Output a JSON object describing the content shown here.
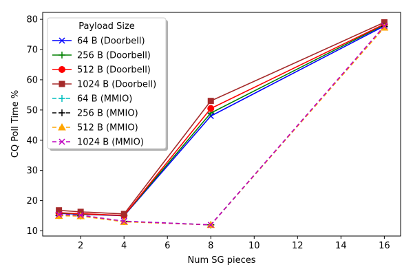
{
  "chart_data": {
    "type": "line",
    "title": "",
    "xlabel": "Num SG pieces",
    "ylabel": "CQ Poll Time %",
    "xlim": [
      0.25,
      16.75
    ],
    "ylim": [
      8.3,
      82.3
    ],
    "xticks": [
      2,
      4,
      6,
      8,
      10,
      12,
      14,
      16
    ],
    "yticks": [
      10,
      20,
      30,
      40,
      50,
      60,
      70,
      80
    ],
    "grid": false,
    "legend": {
      "title": "Payload Size",
      "placement": "top-left"
    },
    "x": [
      1,
      2,
      4,
      8,
      16
    ],
    "series": [
      {
        "name": "64 B (Doorbell)",
        "values": [
          15.8,
          15.5,
          15.0,
          48.0,
          77.8
        ],
        "color": "#0000ff",
        "dash": "solid",
        "marker": "x"
      },
      {
        "name": "256 B (Doorbell)",
        "values": [
          15.9,
          15.6,
          15.1,
          49.0,
          78.2
        ],
        "color": "#008000",
        "dash": "solid",
        "marker": "plus"
      },
      {
        "name": "512 B (Doorbell)",
        "values": [
          16.0,
          15.7,
          15.1,
          50.5,
          78.4
        ],
        "color": "#ff0000",
        "dash": "solid",
        "marker": "circle"
      },
      {
        "name": "1024 B (Doorbell)",
        "values": [
          16.8,
          16.3,
          15.6,
          53.0,
          79.0
        ],
        "color": "#a52a2a",
        "dash": "solid",
        "marker": "square"
      },
      {
        "name": "64 B (MMIO)",
        "values": [
          15.1,
          15.0,
          13.2,
          12.0,
          77.5
        ],
        "color": "#00bfbf",
        "dash": "dashed",
        "marker": "plus"
      },
      {
        "name": "256 B (MMIO)",
        "values": [
          15.1,
          15.0,
          13.1,
          12.0,
          77.6
        ],
        "color": "#000000",
        "dash": "dashed",
        "marker": "plus"
      },
      {
        "name": "512 B (MMIO)",
        "values": [
          15.0,
          14.9,
          13.0,
          12.0,
          77.3
        ],
        "color": "#ffa500",
        "dash": "dashed",
        "marker": "triangle"
      },
      {
        "name": "1024 B (MMIO)",
        "values": [
          15.4,
          15.2,
          13.2,
          12.0,
          77.8
        ],
        "color": "#bf00bf",
        "dash": "dashed",
        "marker": "x"
      }
    ]
  }
}
